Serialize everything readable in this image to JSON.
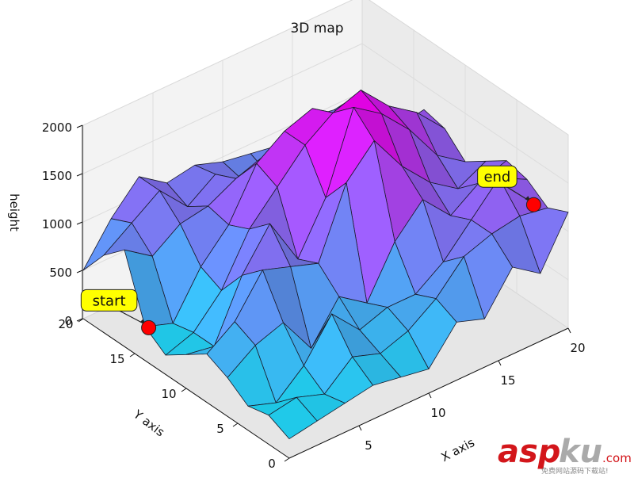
{
  "chart_data": {
    "type": "surface3d",
    "title": "3D map",
    "xlabel": "X axis",
    "ylabel": "Y axis",
    "zlabel": "height",
    "xlim": [
      0,
      20
    ],
    "ylim": [
      0,
      20
    ],
    "zlim": [
      0,
      2000
    ],
    "xticks": [
      "5",
      "10",
      "15",
      "20"
    ],
    "yticks": [
      "0",
      "5",
      "10",
      "15",
      "20"
    ],
    "zticks": [
      "0",
      "500",
      "1000",
      "1500",
      "2000"
    ],
    "colormap": "cool",
    "grid_x": [
      0,
      2,
      4,
      6,
      8,
      10,
      12,
      14,
      16,
      18,
      20
    ],
    "grid_y": [
      0,
      2,
      4,
      6,
      8,
      10,
      12,
      14,
      16,
      18,
      20
    ],
    "heights": [
      [
        200,
        250,
        300,
        350,
        300,
        250,
        600,
        500,
        900,
        700,
        1200
      ],
      [
        300,
        350,
        250,
        500,
        400,
        500,
        700,
        1000,
        1100,
        1150,
        1100
      ],
      [
        250,
        150,
        400,
        800,
        500,
        600,
        600,
        800,
        1100,
        1400,
        1250
      ],
      [
        400,
        600,
        700,
        300,
        700,
        500,
        1000,
        1300,
        1000,
        1200,
        1300
      ],
      [
        500,
        700,
        1100,
        1000,
        900,
        1600,
        1900,
        1500,
        1200,
        1000,
        1150
      ],
      [
        350,
        300,
        900,
        1300,
        800,
        1300,
        2100,
        1900,
        1600,
        1200,
        1000
      ],
      [
        200,
        300,
        600,
        1100,
        1400,
        1700,
        1900,
        2000,
        1700,
        1500,
        1200
      ],
      [
        350,
        250,
        700,
        1000,
        1500,
        1700,
        1800,
        1500,
        1200,
        1200,
        1250
      ],
      [
        1000,
        800,
        1000,
        1050,
        1200,
        1300,
        1000,
        900,
        1150,
        1000,
        900
      ],
      [
        800,
        1000,
        1200,
        900,
        1100,
        900,
        800,
        1000,
        1100,
        1000,
        1000
      ],
      [
        500,
        900,
        1200,
        1000,
        1050,
        950,
        900,
        850,
        1000,
        950,
        1000
      ]
    ],
    "annotations": [
      {
        "label": "start",
        "x": 1,
        "y": 15,
        "z": 200
      },
      {
        "label": "end",
        "x": 19,
        "y": 2,
        "z": 1200
      }
    ]
  },
  "watermark": {
    "brand": "asp",
    "brand_accent": "ku",
    "suffix": ".com",
    "tagline": "免费网站源码下载站!",
    "colors": {
      "brand": "#d3161b",
      "accent": "#aaaaaa"
    }
  }
}
